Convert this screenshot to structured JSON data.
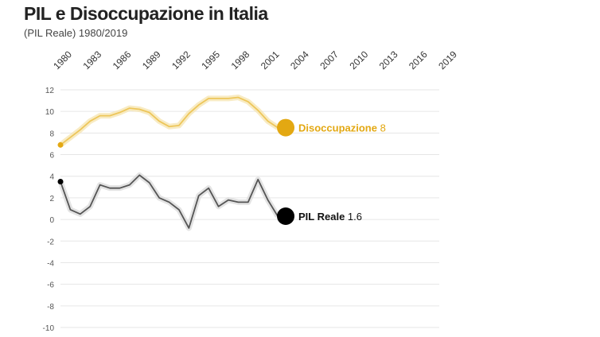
{
  "title": "PIL e Disoccupazione in Italia",
  "subtitle": "(PIL Reale) 1980/2019",
  "chart_data": {
    "type": "line",
    "title": "PIL e Disoccupazione in Italia",
    "subtitle": "(PIL Reale) 1980/2019",
    "x_ticks": [
      "1980",
      "1983",
      "1986",
      "1989",
      "1992",
      "1995",
      "1998",
      "2001",
      "2004",
      "2007",
      "2010",
      "2013",
      "2016",
      "2019"
    ],
    "xlim": [
      1980,
      2019
    ],
    "ylim": [
      -10,
      12
    ],
    "y_ticks": [
      12,
      10,
      8,
      6,
      4,
      2,
      0,
      -2,
      -4,
      -6,
      -8,
      -10
    ],
    "grid": true,
    "x": [
      1980,
      1981,
      1982,
      1983,
      1984,
      1985,
      1986,
      1987,
      1988,
      1989,
      1990,
      1991,
      1992,
      1993,
      1994,
      1995,
      1996,
      1997,
      1998,
      1999,
      2000,
      2001,
      2002
    ],
    "series": [
      {
        "name": "Disoccupazione",
        "label_value": "8",
        "color": "#e3a812",
        "values": [
          6.9,
          7.6,
          8.3,
          9.1,
          9.6,
          9.6,
          9.9,
          10.3,
          10.2,
          9.9,
          9.1,
          8.6,
          8.7,
          9.8,
          10.6,
          11.2,
          11.2,
          11.2,
          11.3,
          10.9,
          10.1,
          9.1,
          8.5
        ]
      },
      {
        "name": "PIL Reale",
        "label_value": "1.6",
        "color": "#000000",
        "values": [
          3.5,
          0.9,
          0.5,
          1.2,
          3.2,
          2.9,
          2.9,
          3.2,
          4.1,
          3.4,
          2.0,
          1.6,
          0.9,
          -0.8,
          2.2,
          2.9,
          1.2,
          1.8,
          1.6,
          1.6,
          3.7,
          1.8,
          0.3
        ]
      }
    ]
  }
}
